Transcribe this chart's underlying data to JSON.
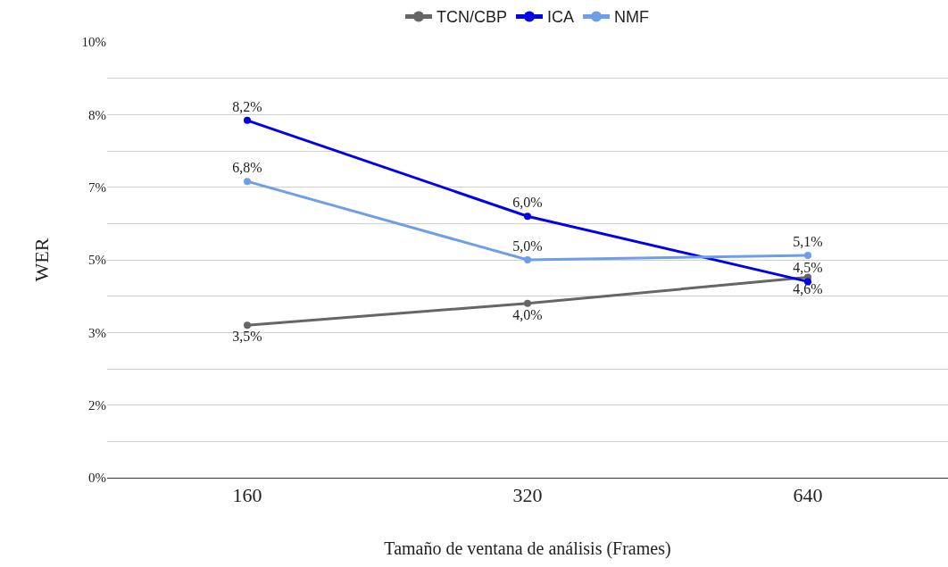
{
  "chart_data": {
    "type": "line",
    "xlabel": "Tamaño de ventana de análisis (Frames)",
    "ylabel": "WER",
    "categories": [
      "160",
      "320",
      "640"
    ],
    "series": [
      {
        "name": "TCN/CBP",
        "color": "#666666",
        "values": [
          3.5,
          4.0,
          4.6
        ],
        "value_labels": [
          "3,5%",
          "4,0%",
          "4,6%"
        ]
      },
      {
        "name": "ICA",
        "color": "#0000ee",
        "values": [
          8.2,
          6.0,
          4.5
        ],
        "value_labels": [
          "8,2%",
          "6,0%",
          "4,5%"
        ]
      },
      {
        "name": "NMF",
        "color": "#6d9eeb",
        "values": [
          6.8,
          5.0,
          5.1
        ],
        "value_labels": [
          "6,8%",
          "5,0%",
          "5,1%"
        ]
      }
    ],
    "ylim": [
      0,
      10
    ],
    "yticks": [
      {
        "value": 0,
        "label": "0%"
      },
      {
        "value": 0.833,
        "label": null
      },
      {
        "value": 1.667,
        "label": "2%"
      },
      {
        "value": 2.5,
        "label": null
      },
      {
        "value": 3.333,
        "label": "3%"
      },
      {
        "value": 4.167,
        "label": null
      },
      {
        "value": 5,
        "label": "5%"
      },
      {
        "value": 5.833,
        "label": null
      },
      {
        "value": 6.667,
        "label": "7%"
      },
      {
        "value": 7.5,
        "label": null
      },
      {
        "value": 8.333,
        "label": "8%"
      },
      {
        "value": 9.167,
        "label": null
      },
      {
        "value": 10,
        "label": "10%"
      }
    ],
    "grid": "y",
    "legend": "top",
    "marker": "circle",
    "line_style": "solid"
  }
}
